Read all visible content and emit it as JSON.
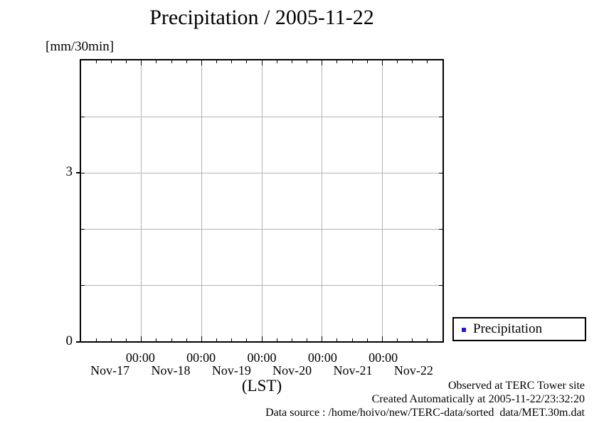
{
  "title": "Precipitation / 2005-11-22",
  "y_axis": {
    "unit_label": "[mm/30min]",
    "ticks": [
      {
        "label": "3",
        "value": 3
      },
      {
        "label": "0",
        "value": 0
      }
    ]
  },
  "x_axis": {
    "time_labels": [
      "00:00",
      "00:00",
      "00:00",
      "00:00",
      "00:00"
    ],
    "day_labels": [
      "Nov-17",
      "Nov-18",
      "Nov-19",
      "Nov-20",
      "Nov-21",
      "Nov-22"
    ],
    "axis_label": "(LST)"
  },
  "legend": {
    "label": "Precipitation",
    "marker_color": "#1a1acc",
    "marker_shape": "square"
  },
  "footer": {
    "line1": "Observed at TERC Tower site",
    "line2": "Created Automatically at 2005-11-22/23:32:20",
    "line3": "Data source : /home/hoivo/new/TERC-data/sorted  data/MET.30m.dat"
  },
  "colors": {
    "grid": "#b3b3b3",
    "axis": "#000000",
    "background": "#ffffff",
    "text": "#000000"
  },
  "chart_data": {
    "type": "scatter",
    "title": "Precipitation / 2005-11-22",
    "xlabel": "(LST)",
    "ylabel": "[mm/30min]",
    "x_range_days": 6,
    "x_start": "Nov-17 00:00",
    "x_end": "Nov-23 00:00",
    "ylim": [
      0,
      5
    ],
    "y_gridlines": [
      1,
      2,
      3,
      4
    ],
    "y_tick_labels_shown": [
      3,
      0
    ],
    "x_major_tick_interval_hours": 24,
    "x_minor_tick_interval_hours": 6,
    "grid": true,
    "legend_position": "outside-right-bottom",
    "series": [
      {
        "name": "Precipitation",
        "marker": "square",
        "color": "#1a1acc",
        "points": []
      }
    ]
  }
}
